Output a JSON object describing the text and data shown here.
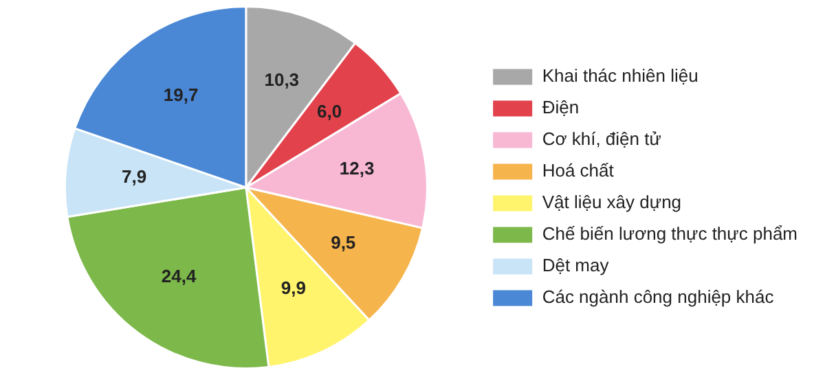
{
  "chart_data": {
    "type": "pie",
    "categories": [
      "Khai thác nhiên liệu",
      "Điện",
      "Cơ khí, điện tử",
      "Hoá chất",
      "Vật liệu xây dựng",
      "Chế biến lương thực thực phẩm",
      "Dệt may",
      "Các ngành công nghiệp khác"
    ],
    "values": [
      10.3,
      6.0,
      12.3,
      9.5,
      9.9,
      24.4,
      7.9,
      19.7
    ],
    "value_labels": [
      "10,3",
      "6,0",
      "12,3",
      "9,5",
      "9,9",
      "24,4",
      "7,9",
      "19,7"
    ],
    "colors": [
      "#a8a8a8",
      "#e2424c",
      "#f8b8d4",
      "#f6b44c",
      "#fff46c",
      "#7cb84a",
      "#c8e4f6",
      "#4a88d6"
    ],
    "legend": "right"
  }
}
